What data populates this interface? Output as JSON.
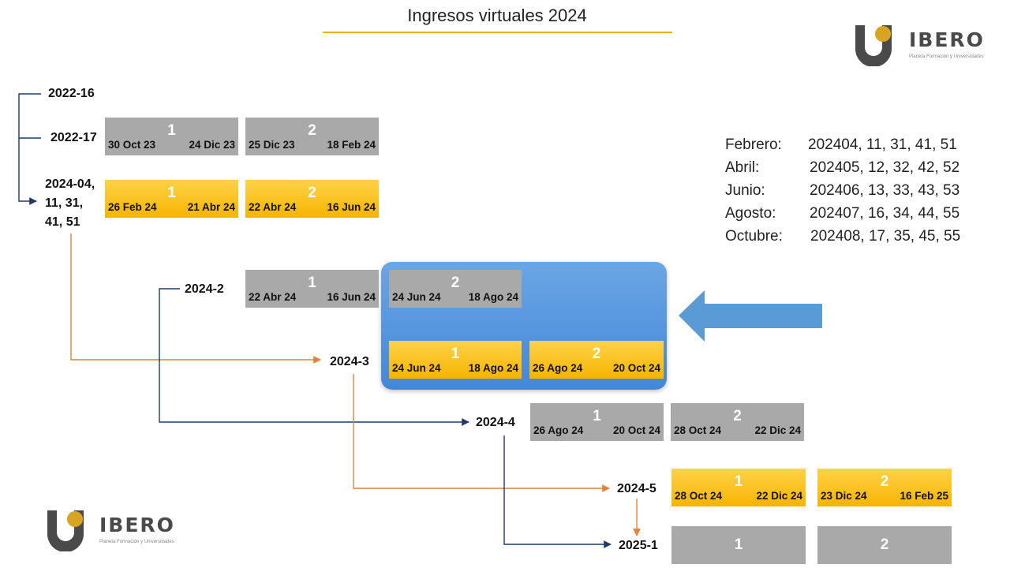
{
  "title": "Ingresos virtuales 2024",
  "brand": {
    "name": "IBERO",
    "tagline": "Planeta Formación y Universidades"
  },
  "colors": {
    "gray_box": "#a9a9a9",
    "yellow_box": "#f6b400",
    "highlight": "#4a8fdc",
    "orange_line": "#e8803a",
    "navy_line": "#1f3a6b",
    "accent_rule": "#e8b400"
  },
  "groups": {
    "g2022_16": "2022-16",
    "g2022_17": "2022-17",
    "g2024_04": "2024-04,\n11, 31,\n41, 51",
    "g2024_2": "2024-2",
    "g2024_3": "2024-3",
    "g2024_4": "2024-4",
    "g2024_5": "2024-5",
    "g2025_1": "2025-1"
  },
  "periods": {
    "p2022_17_1": {
      "start": "30 Oct 23",
      "number": "1",
      "end": "24 Dic 23"
    },
    "p2022_17_2": {
      "start": "25 Dic 23",
      "number": "2",
      "end": "18 Feb 24"
    },
    "p2024_04_1": {
      "start": "26 Feb 24",
      "number": "1",
      "end": "21 Abr 24"
    },
    "p2024_04_2": {
      "start": "22 Abr 24",
      "number": "2",
      "end": "16 Jun 24"
    },
    "p2024_2_1": {
      "start": "22 Abr 24",
      "number": "1",
      "end": "16 Jun 24"
    },
    "p2024_2_2": {
      "start": "24 Jun 24",
      "number": "2",
      "end": "18 Ago 24"
    },
    "p2024_3_1": {
      "start": "24 Jun 24",
      "number": "1",
      "end": "18 Ago 24"
    },
    "p2024_3_2": {
      "start": "26 Ago 24",
      "number": "2",
      "end": "20 Oct 24"
    },
    "p2024_4_1": {
      "start": "26 Ago 24",
      "number": "1",
      "end": "20 Oct 24"
    },
    "p2024_4_2": {
      "start": "28 Oct 24",
      "number": "2",
      "end": "22 Dic 24"
    },
    "p2024_5_1": {
      "start": "28 Oct 24",
      "number": "1",
      "end": "22 Dic 24"
    },
    "p2024_5_2": {
      "start": "23 Dic 24",
      "number": "2",
      "end": "16 Feb 25"
    },
    "p2025_1_1": {
      "number": "1"
    },
    "p2025_1_2": {
      "number": "2"
    }
  },
  "legend": [
    {
      "month": "Febrero:",
      "codes": "202404, 11, 31, 41, 51"
    },
    {
      "month": "Abril:",
      "codes": "202405, 12, 32, 42, 52"
    },
    {
      "month": "Junio:",
      "codes": "202406, 13, 33, 43, 53"
    },
    {
      "month": "Agosto:",
      "codes": "202407, 16, 34, 44, 55"
    },
    {
      "month": "Octubre:",
      "codes": "202408, 17, 35, 45, 55"
    }
  ]
}
